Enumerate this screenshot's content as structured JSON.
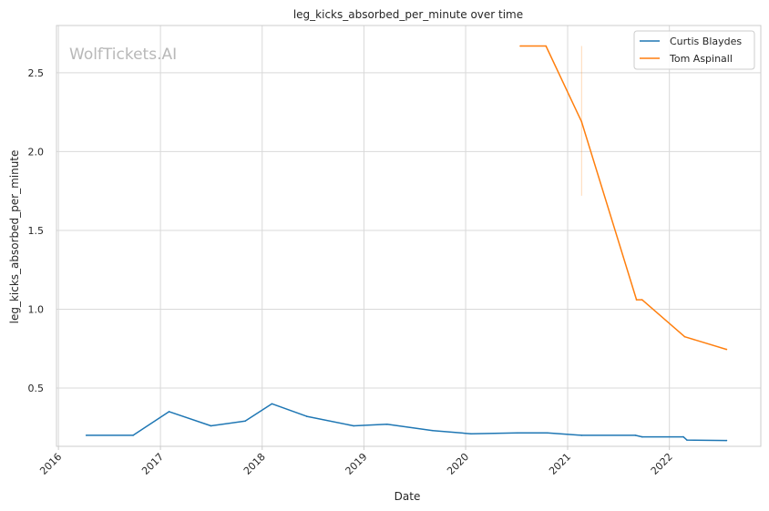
{
  "chart_data": {
    "type": "line",
    "title": "leg_kicks_absorbed_per_minute over time",
    "xlabel": "Date",
    "ylabel": "leg_kicks_absorbed_per_minute",
    "watermark": "WolfTickets.AI",
    "x_ticks": [
      "2016",
      "2017",
      "2018",
      "2019",
      "2020",
      "2021",
      "2022"
    ],
    "y_ticks": [
      "0.5",
      "1.0",
      "1.5",
      "2.0",
      "2.5"
    ],
    "ylim": [
      0.13,
      2.8
    ],
    "xlim": [
      "2015-12-25",
      "2022-11-25"
    ],
    "grid": true,
    "legend_position": "top-right",
    "series": [
      {
        "name": "Curtis Blaydes",
        "color": "#1f77b4",
        "points": [
          [
            "2016-04-10",
            0.2
          ],
          [
            "2016-09-25",
            0.2
          ],
          [
            "2017-02-01",
            0.35
          ],
          [
            "2017-07-01",
            0.26
          ],
          [
            "2017-11-01",
            0.29
          ],
          [
            "2018-02-05",
            0.4
          ],
          [
            "2018-06-10",
            0.32
          ],
          [
            "2018-11-25",
            0.26
          ],
          [
            "2019-03-25",
            0.27
          ],
          [
            "2019-09-05",
            0.23
          ],
          [
            "2020-01-20",
            0.21
          ],
          [
            "2020-07-05",
            0.215
          ],
          [
            "2020-10-20",
            0.215
          ],
          [
            "2021-02-20",
            0.2
          ],
          [
            "2021-09-01",
            0.2
          ],
          [
            "2021-09-25",
            0.19
          ],
          [
            "2022-02-20",
            0.19
          ],
          [
            "2022-03-05",
            0.17
          ],
          [
            "2022-07-25",
            0.167
          ]
        ]
      },
      {
        "name": "Tom Aspinall",
        "color": "#ff7f0e",
        "points": [
          [
            "2020-07-15",
            2.67
          ],
          [
            "2020-10-15",
            2.67
          ],
          [
            "2021-02-20",
            2.19
          ],
          [
            "2021-09-05",
            1.06
          ],
          [
            "2021-09-25",
            1.06
          ],
          [
            "2022-02-25",
            0.825
          ],
          [
            "2022-07-25",
            0.745
          ]
        ],
        "band": {
          "x": "2021-02-20",
          "low": 1.72,
          "high": 2.67
        }
      }
    ]
  }
}
